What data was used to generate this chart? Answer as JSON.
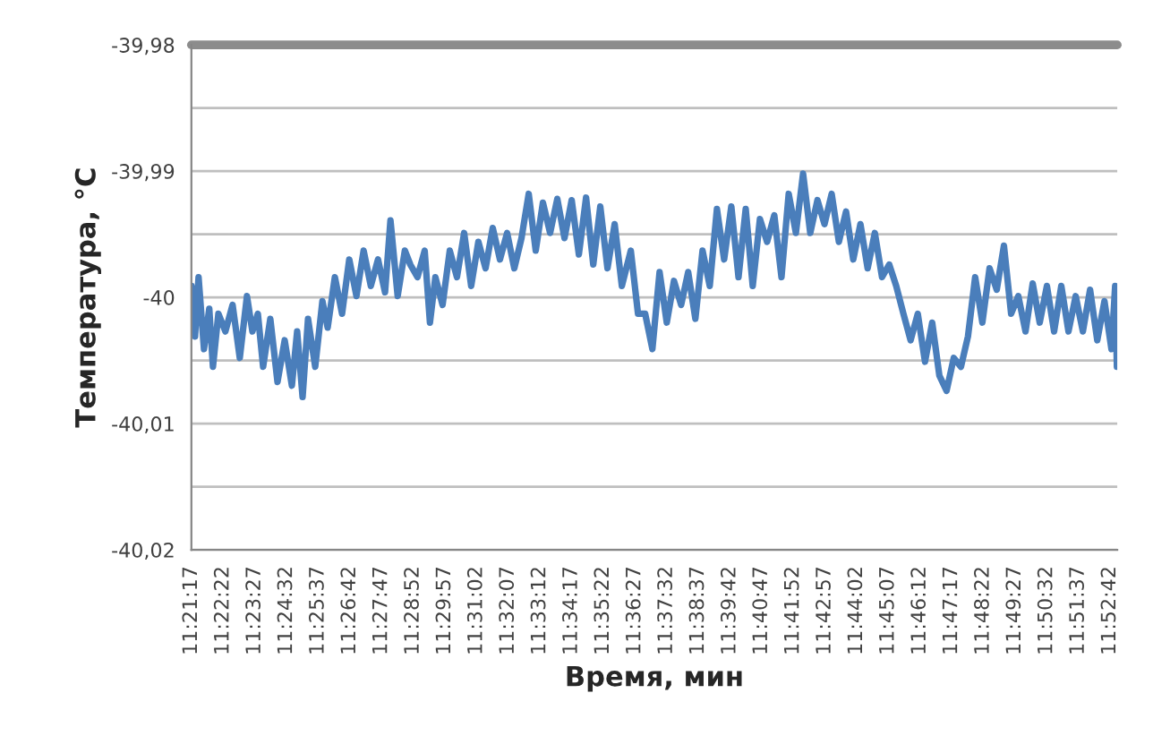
{
  "chart_data": {
    "type": "line",
    "xlabel": "Время, мин",
    "ylabel": "Температура, °C",
    "series": [
      {
        "color": "#4a7ebb",
        "x": [
          11.3548,
          11.3568,
          11.3588,
          11.3619,
          11.3649,
          11.367,
          11.3701,
          11.3741,
          11.3782,
          11.3823,
          11.3864,
          11.3895,
          11.3926,
          11.3956,
          11.3997,
          11.4038,
          11.4079,
          11.412,
          11.415,
          11.4181,
          11.4212,
          11.4253,
          11.4294,
          11.4324,
          11.4365,
          11.4406,
          11.4447,
          11.4488,
          11.4529,
          11.457,
          11.4611,
          11.4651,
          11.4682,
          11.4723,
          11.4764,
          11.4795,
          11.4836,
          11.4877,
          11.4907,
          11.4938,
          11.4979,
          11.502,
          11.5061,
          11.5102,
          11.5142,
          11.5183,
          11.5224,
          11.5265,
          11.5306,
          11.5347,
          11.5388,
          11.5429,
          11.547,
          11.551,
          11.5551,
          11.5592,
          11.5633,
          11.5674,
          11.5715,
          11.5756,
          11.5797,
          11.5838,
          11.5878,
          11.5919,
          11.596,
          11.6001,
          11.6052,
          11.6093,
          11.6134,
          11.6175,
          11.6216,
          11.6257,
          11.6298,
          11.6339,
          11.6379,
          11.642,
          11.6461,
          11.6502,
          11.6543,
          11.6584,
          11.6625,
          11.6666,
          11.6707,
          11.6747,
          11.6788,
          11.6829,
          11.687,
          11.6911,
          11.6952,
          11.6993,
          11.7034,
          11.7075,
          11.7116,
          11.7156,
          11.7197,
          11.7238,
          11.7279,
          11.732,
          11.7361,
          11.7402,
          11.7443,
          11.7484,
          11.7525,
          11.7565,
          11.7606,
          11.7647,
          11.7688,
          11.7729,
          11.777,
          11.7811,
          11.7852,
          11.7893,
          11.7934,
          11.7974,
          11.8015,
          11.8056,
          11.8097,
          11.8138,
          11.8179,
          11.822,
          11.8261,
          11.8302,
          11.8343,
          11.8383,
          11.8424,
          11.8465,
          11.8506,
          11.8547,
          11.8588,
          11.8629,
          11.867,
          11.8711,
          11.8752,
          11.8792,
          11.8813,
          11.8823
        ],
        "values": [
          -39.9991,
          -40.0031,
          -39.9984,
          -40.0041,
          -40.0009,
          -40.0055,
          -40.0013,
          -40.0027,
          -40.0006,
          -40.0048,
          -39.9999,
          -40.0027,
          -40.0013,
          -40.0055,
          -40.0017,
          -40.0067,
          -40.0034,
          -40.007,
          -40.0027,
          -40.0079,
          -40.0017,
          -40.0055,
          -40.0003,
          -40.0024,
          -39.9984,
          -40.0013,
          -39.997,
          -39.9999,
          -39.9963,
          -39.9991,
          -39.997,
          -39.9996,
          -39.9939,
          -39.9999,
          -39.9963,
          -39.9974,
          -39.9984,
          -39.9963,
          -40.002,
          -39.9984,
          -40.0006,
          -39.9963,
          -39.9984,
          -39.9949,
          -39.9991,
          -39.9956,
          -39.9977,
          -39.9945,
          -39.997,
          -39.9949,
          -39.9977,
          -39.9953,
          -39.9918,
          -39.9963,
          -39.9925,
          -39.9949,
          -39.9922,
          -39.9953,
          -39.9923,
          -39.9966,
          -39.9921,
          -39.9974,
          -39.9928,
          -39.9977,
          -39.9942,
          -39.9991,
          -39.9963,
          -40.0013,
          -40.0013,
          -40.0041,
          -39.998,
          -40.002,
          -39.9987,
          -40.0006,
          -39.998,
          -40.0017,
          -39.9963,
          -39.9991,
          -39.993,
          -39.997,
          -39.9928,
          -39.9984,
          -39.993,
          -39.9991,
          -39.9938,
          -39.9956,
          -39.9935,
          -39.9984,
          -39.9918,
          -39.9949,
          -39.9902,
          -39.9949,
          -39.9923,
          -39.9942,
          -39.9918,
          -39.9956,
          -39.9932,
          -39.997,
          -39.9942,
          -39.9977,
          -39.9949,
          -39.9984,
          -39.9974,
          -39.9991,
          -40.0013,
          -40.0034,
          -40.0013,
          -40.0051,
          -40.002,
          -40.0062,
          -40.0074,
          -40.0048,
          -40.0055,
          -40.0031,
          -39.9984,
          -40.002,
          -39.9977,
          -39.9994,
          -39.9959,
          -40.0013,
          -39.9999,
          -40.0027,
          -39.9989,
          -40.002,
          -39.9991,
          -40.0027,
          -39.9991,
          -40.0027,
          -39.9999,
          -40.0027,
          -39.9994,
          -40.0034,
          -40.0003,
          -40.0041,
          -39.9991,
          -40.0055
        ]
      }
    ],
    "xlim": [
      11.35472,
      11.8825
    ],
    "xticks": [
      {
        "value": 11.35472,
        "label": "11:21:17"
      },
      {
        "value": 11.37278,
        "label": "11:22:22"
      },
      {
        "value": 11.39083,
        "label": "11:23:27"
      },
      {
        "value": 11.40889,
        "label": "11:24:32"
      },
      {
        "value": 11.42694,
        "label": "11:25:37"
      },
      {
        "value": 11.445,
        "label": "11:26:42"
      },
      {
        "value": 11.46306,
        "label": "11:27:47"
      },
      {
        "value": 11.48111,
        "label": "11:28:52"
      },
      {
        "value": 11.49917,
        "label": "11:29:57"
      },
      {
        "value": 11.51722,
        "label": "11:31:02"
      },
      {
        "value": 11.53528,
        "label": "11:32:07"
      },
      {
        "value": 11.55333,
        "label": "11:33:12"
      },
      {
        "value": 11.57139,
        "label": "11:34:17"
      },
      {
        "value": 11.58944,
        "label": "11:35:22"
      },
      {
        "value": 11.6075,
        "label": "11:36:27"
      },
      {
        "value": 11.62556,
        "label": "11:37:32"
      },
      {
        "value": 11.64361,
        "label": "11:38:37"
      },
      {
        "value": 11.66167,
        "label": "11:39:42"
      },
      {
        "value": 11.67972,
        "label": "11:40:47"
      },
      {
        "value": 11.69778,
        "label": "11:41:52"
      },
      {
        "value": 11.71583,
        "label": "11:42:57"
      },
      {
        "value": 11.73389,
        "label": "11:44:02"
      },
      {
        "value": 11.75194,
        "label": "11:45:07"
      },
      {
        "value": 11.77,
        "label": "11:46:12"
      },
      {
        "value": 11.78806,
        "label": "11:47:17"
      },
      {
        "value": 11.80611,
        "label": "11:48:22"
      },
      {
        "value": 11.82417,
        "label": "11:49:27"
      },
      {
        "value": 11.84222,
        "label": "11:50:32"
      },
      {
        "value": 11.86028,
        "label": "11:51:37"
      },
      {
        "value": 11.87833,
        "label": "11:52:42"
      }
    ],
    "ylim": [
      -40.02,
      -39.98
    ],
    "yticks": [
      {
        "value": -40.02,
        "label": "-40,02"
      },
      {
        "value": -40.015,
        "label": null
      },
      {
        "value": -40.01,
        "label": "-40,01"
      },
      {
        "value": -40.005,
        "label": null
      },
      -40,
      {
        "value": -39.995,
        "label": null
      },
      {
        "value": -39.99,
        "label": "-39,99"
      },
      {
        "value": -39.985,
        "label": null
      },
      {
        "value": -39.98,
        "label": "-39,98"
      }
    ],
    "ref_lines": [
      {
        "axis": "y",
        "value": -39.98,
        "color": "#8c8c8c"
      }
    ],
    "grid": "y",
    "legend": false,
    "marker": "none",
    "line_style": "solid"
  }
}
